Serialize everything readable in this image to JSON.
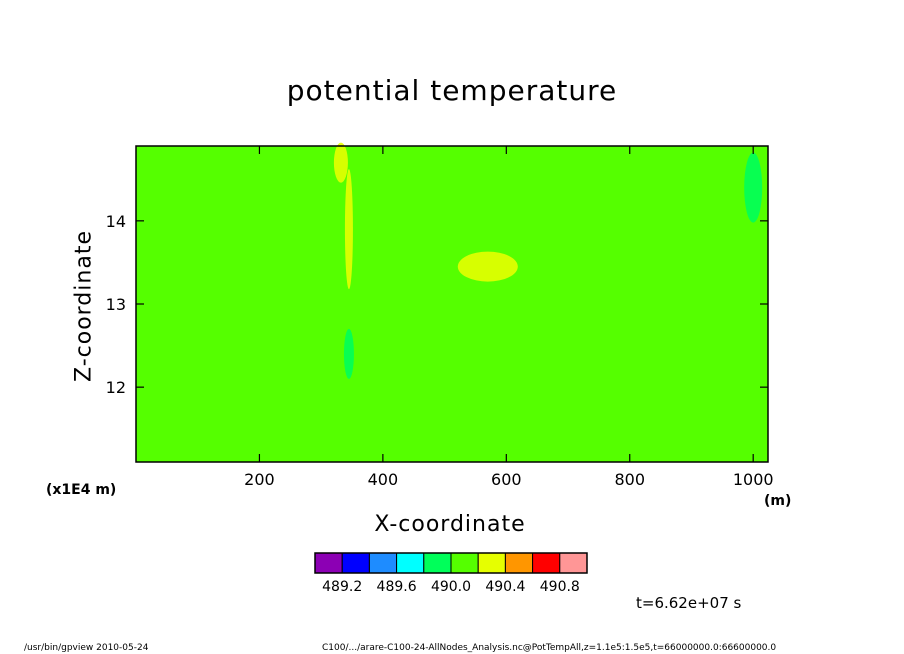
{
  "chart_data": {
    "type": "heatmap",
    "title": "potential temperature",
    "xlabel": "X-coordinate",
    "ylabel": "Z-coordinate",
    "x_unit": "(m)",
    "y_unit": "(x1E4 m)",
    "xlim": [
      0,
      1024
    ],
    "ylim": [
      11.1,
      14.9
    ],
    "x_ticks": [
      200,
      400,
      600,
      800,
      1000
    ],
    "y_ticks": [
      12,
      13,
      14
    ],
    "background_level": 490.1,
    "features": [
      {
        "x": 332,
        "z": 14.7,
        "value": 490.3
      },
      {
        "x": 345,
        "z": 13.9,
        "value": 490.3
      },
      {
        "x": 345,
        "z": 12.4,
        "value": 489.9
      },
      {
        "x": 1000,
        "z": 14.4,
        "value": 489.9
      },
      {
        "x": 570,
        "z": 13.45,
        "value": 490.2
      }
    ],
    "colorbar": {
      "colors": [
        "#8c00b4",
        "#0000ff",
        "#1e8cff",
        "#00ffff",
        "#00ff5a",
        "#55ff00",
        "#e6ff00",
        "#ff9600",
        "#ff0000",
        "#ff9696"
      ],
      "labels": [
        "489.2",
        "489.6",
        "490.0",
        "490.4",
        "490.8"
      ]
    },
    "grid": false
  },
  "annotations": {
    "time": "t=6.62e+07 s",
    "footer_left": "/usr/bin/gpview   2010-05-24",
    "footer_right": "C100/.../arare-C100-24-AllNodes_Analysis.nc@PotTempAll,z=1.1e5:1.5e5,t=66000000.0:66600000.0"
  }
}
